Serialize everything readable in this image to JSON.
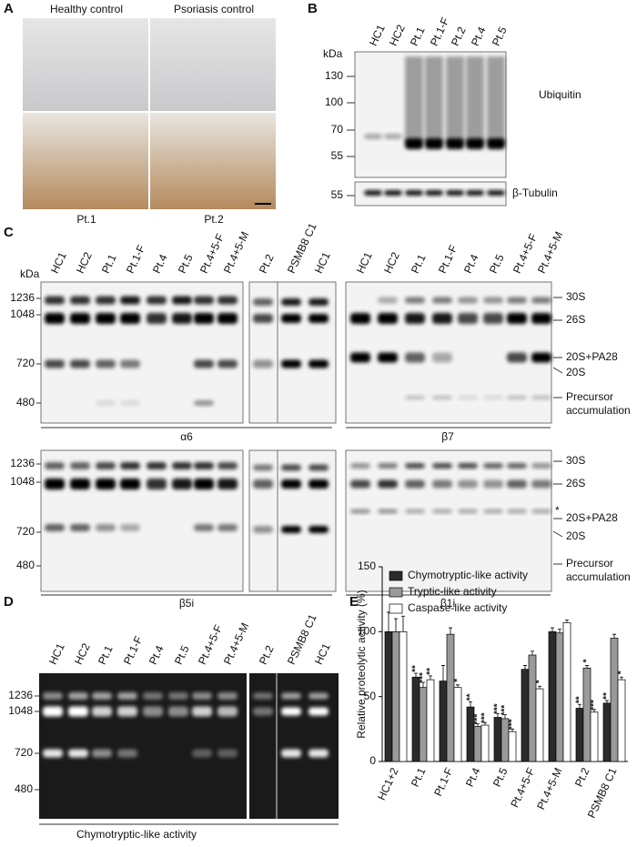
{
  "panel_a": {
    "letter": "A",
    "labels": [
      "Healthy control",
      "Psoriasis control",
      "Pt.1",
      "Pt.2"
    ]
  },
  "panel_b": {
    "letter": "B",
    "unit": "kDa",
    "lanes": [
      "HC1",
      "HC2",
      "Pt.1",
      "Pt.1-F",
      "Pt.2",
      "Pt.4",
      "Pt.5"
    ],
    "markers": [
      "130",
      "100",
      "70",
      "55"
    ],
    "tubulin_marker": "55",
    "labels": [
      "Ubiquitin",
      "β-Tubulin"
    ]
  },
  "panel_c": {
    "letter": "C",
    "unit": "kDa",
    "lanes_left": [
      "HC1",
      "HC2",
      "Pt.1",
      "Pt.1-F",
      "Pt.4",
      "Pt.5",
      "Pt.4+5-F",
      "Pt.4+5-M",
      "Pt.2",
      "PSMB8 C1",
      "HC1"
    ],
    "lanes_right": [
      "HC1",
      "HC2",
      "Pt.1",
      "Pt.1-F",
      "Pt.4",
      "Pt.5",
      "Pt.4+5-F",
      "Pt.4+5-M"
    ],
    "markers": [
      "1236",
      "1048",
      "720",
      "480"
    ],
    "antibodies": [
      "α6",
      "β7",
      "β5i",
      "β1i"
    ],
    "species": [
      "30S",
      "26S",
      "20S+PA28",
      "20S"
    ],
    "precursor": [
      "Precursor",
      "accumulation"
    ],
    "asterisk": "*"
  },
  "panel_d": {
    "letter": "D",
    "lanes": [
      "HC1",
      "HC2",
      "Pt.1",
      "Pt.1-F",
      "Pt.4",
      "Pt.5",
      "Pt.4+5-F",
      "Pt.4+5-M",
      "Pt.2",
      "PSMB8 C1",
      "HC1"
    ],
    "markers": [
      "1236",
      "1048",
      "720",
      "480"
    ],
    "caption": "Chymotryptic-like activity"
  },
  "panel_e": {
    "letter": "E"
  },
  "chart_data": {
    "type": "bar",
    "ylabel": "Relative proteolytic activity (%)",
    "categories": [
      "HC1+2",
      "Pt.1",
      "Pt.1-F",
      "Pt.4",
      "Pt.5",
      "Pt.4+5-F",
      "Pt.4+5-M",
      "Pt.2",
      "PSMB8 C1"
    ],
    "ylim": [
      0,
      150
    ],
    "yticks": [
      0,
      50,
      100,
      150
    ],
    "legend": "top-left",
    "series": [
      {
        "name": "Chymotryptic-like activity",
        "color": "#2b2b2b",
        "values": [
          100,
          65,
          62,
          42,
          34,
          71,
          100,
          41,
          45
        ],
        "errors": [
          15,
          3,
          12,
          4,
          3,
          3,
          3,
          3,
          2
        ],
        "significance": [
          null,
          "**",
          null,
          "**",
          "***",
          null,
          null,
          "**",
          "**"
        ]
      },
      {
        "name": "Tryptic-like activity",
        "color": "#9a9a9a",
        "values": [
          100,
          57,
          98,
          27,
          33,
          82,
          99,
          72,
          95
        ],
        "errors": [
          10,
          4,
          5,
          2,
          3,
          3,
          3,
          2,
          3
        ],
        "significance": [
          null,
          "***",
          null,
          "***",
          "***",
          null,
          null,
          "*",
          null
        ]
      },
      {
        "name": "Caspase-like activity",
        "color": "#ffffff",
        "values": [
          100,
          63,
          57,
          28,
          23,
          56,
          107,
          38,
          63
        ],
        "errors": [
          12,
          3,
          2,
          2,
          2,
          2,
          2,
          2,
          2
        ],
        "significance": [
          null,
          "**",
          "*",
          "***",
          "***",
          "*",
          null,
          "***",
          "*"
        ]
      }
    ]
  }
}
